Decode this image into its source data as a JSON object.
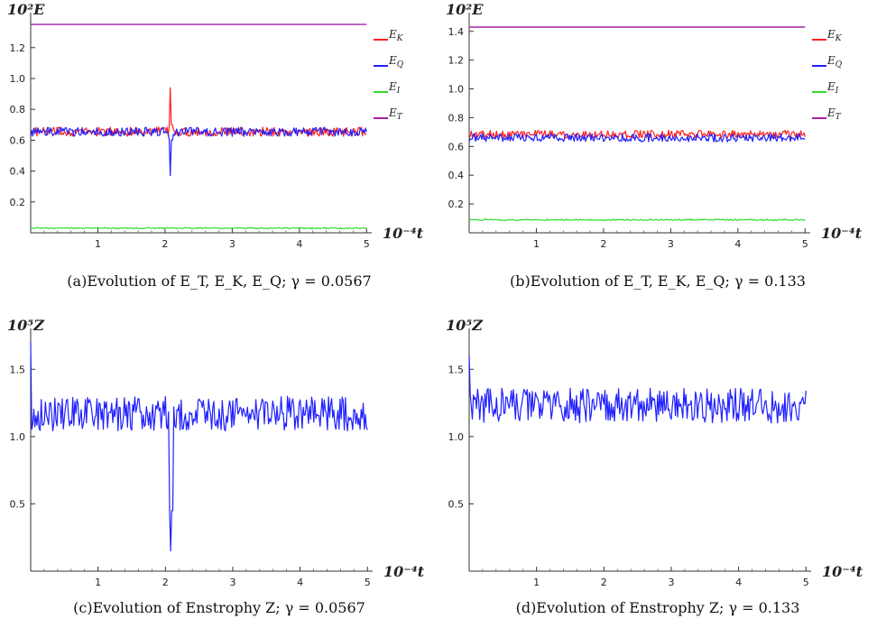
{
  "chart_data": [
    {
      "id": "a",
      "type": "line",
      "caption": "(a)Evolution of E_T, E_K, E_Q; γ = 0.0567",
      "ylabel": "10²E",
      "xlabel": "10⁻⁴t",
      "xlim": [
        0,
        5.05
      ],
      "ylim": [
        0,
        1.38
      ],
      "xticks": [
        1,
        2,
        3,
        4,
        5
      ],
      "xtick_labels": [
        "1",
        "2",
        "3",
        "4",
        "5"
      ],
      "yticks": [
        0.2,
        0.4,
        0.6,
        0.8,
        1.0,
        1.2
      ],
      "ytick_labels": [
        "0.2",
        "0.4",
        "0.6",
        "0.8",
        "1.0",
        "1.2"
      ],
      "legend": "right",
      "series": [
        {
          "name": "E_K",
          "legend_label": "E",
          "legend_sub": "K",
          "color": "#ff2020",
          "base": 0.655,
          "noise": 0.03,
          "spike": {
            "x": 2.08,
            "values": [
              0.94,
              0.7
            ]
          }
        },
        {
          "name": "E_Q",
          "legend_label": "E",
          "legend_sub": "Q",
          "color": "#2020ff",
          "base": 0.655,
          "noise": 0.03,
          "spike": {
            "x": 2.08,
            "values": [
              0.37,
              0.6
            ]
          }
        },
        {
          "name": "E_I",
          "legend_label": "E",
          "legend_sub": "I",
          "color": "#30dd30",
          "base": 0.03,
          "noise": 0.004
        },
        {
          "name": "E_T",
          "legend_label": "E",
          "legend_sub": "T",
          "color": "#a020a8",
          "base": 1.35,
          "noise": 0
        }
      ]
    },
    {
      "id": "b",
      "type": "line",
      "caption": "(b)Evolution of E_T, E_K, E_Q; γ = 0.133",
      "ylabel": "10²E",
      "xlabel": "10⁻⁴t",
      "xlim": [
        0,
        5.05
      ],
      "ylim": [
        0,
        1.48
      ],
      "xticks": [
        1,
        2,
        3,
        4,
        5
      ],
      "xtick_labels": [
        "1",
        "2",
        "3",
        "4",
        "5"
      ],
      "yticks": [
        0.2,
        0.4,
        0.6,
        0.8,
        1.0,
        1.2,
        1.4
      ],
      "ytick_labels": [
        "0.2",
        "0.4",
        "0.6",
        "0.8",
        "1.0",
        "1.2",
        "1.4"
      ],
      "legend": "right",
      "series": [
        {
          "name": "E_K",
          "legend_label": "E",
          "legend_sub": "K",
          "color": "#ff2020",
          "base": 0.685,
          "noise": 0.028
        },
        {
          "name": "E_Q",
          "legend_label": "E",
          "legend_sub": "Q",
          "color": "#2020ff",
          "base": 0.66,
          "noise": 0.028
        },
        {
          "name": "E_I",
          "legend_label": "E",
          "legend_sub": "I",
          "color": "#30dd30",
          "base": 0.09,
          "noise": 0.005
        },
        {
          "name": "E_T",
          "legend_label": "E",
          "legend_sub": "T",
          "color": "#a020a8",
          "base": 1.43,
          "noise": 0
        }
      ]
    },
    {
      "id": "c",
      "type": "line",
      "caption": "(c)Evolution of Enstrophy Z; γ = 0.0567",
      "ylabel": "10⁵Z",
      "xlabel": "10⁻⁴t",
      "xlim": [
        0,
        5.05
      ],
      "ylim": [
        0,
        1.75
      ],
      "xticks": [
        1,
        2,
        3,
        4,
        5
      ],
      "xtick_labels": [
        "1",
        "2",
        "3",
        "4",
        "5"
      ],
      "yticks": [
        0.5,
        1.0,
        1.5
      ],
      "ytick_labels": [
        "0.5",
        "1.0",
        "1.5"
      ],
      "legend": "none",
      "series": [
        {
          "name": "Z",
          "color": "#2020ff",
          "base": 1.17,
          "noise": 0.13,
          "start": 1.7,
          "spike": {
            "x": 2.08,
            "values": [
              0.15,
              0.45
            ]
          }
        }
      ]
    },
    {
      "id": "d",
      "type": "line",
      "caption": "(d)Evolution of Enstrophy Z; γ = 0.133",
      "ylabel": "10⁵Z",
      "xlabel": "10⁻⁴t",
      "xlim": [
        0,
        5.05
      ],
      "ylim": [
        0,
        1.75
      ],
      "xticks": [
        1,
        2,
        3,
        4,
        5
      ],
      "xtick_labels": [
        "1",
        "2",
        "3",
        "4",
        "5"
      ],
      "yticks": [
        0.5,
        1.0,
        1.5
      ],
      "ytick_labels": [
        "0.5",
        "1.0",
        "1.5"
      ],
      "legend": "none",
      "series": [
        {
          "name": "Z",
          "color": "#2020ff",
          "base": 1.23,
          "noise": 0.13,
          "start": 1.6
        }
      ]
    }
  ]
}
